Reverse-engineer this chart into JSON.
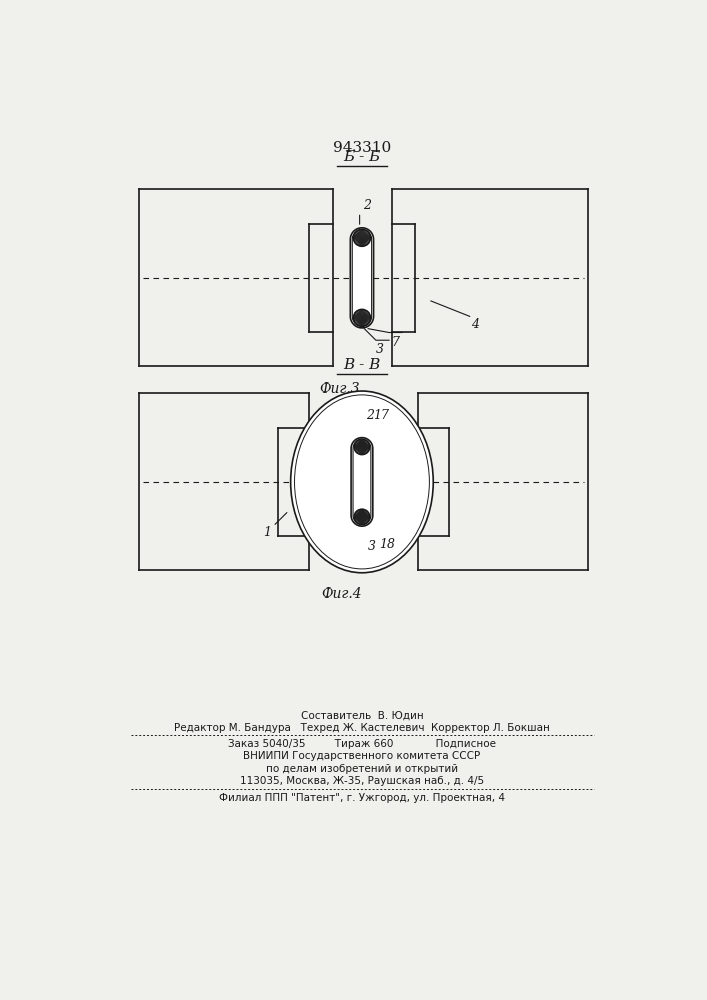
{
  "patent_number": "943310",
  "bg_color": "#f0f0ec",
  "line_color": "#1a1a1a",
  "fig1_label": "Б - Б",
  "fig1_caption": "Фиг.3",
  "fig2_label": "В - В",
  "fig2_caption": "Фиг.4",
  "footer_line1": "Составитель  В. Юдин",
  "footer_line2": "Редактор М. Бандура   Техред Ж. Кастелевич  Корректор Л. Бокшан",
  "footer_line3": "Заказ 5040/35         Тираж 660             Подписное",
  "footer_line4": "ВНИИПИ Государственного комитета СССР",
  "footer_line5": "по делам изобретений и открытий",
  "footer_line6": "113035, Москва, Ж-35, Раушская наб., д. 4/5",
  "footer_line7": "Филиал ППП \"Патент\", г. Ужгород, ул. Проектная, 4"
}
